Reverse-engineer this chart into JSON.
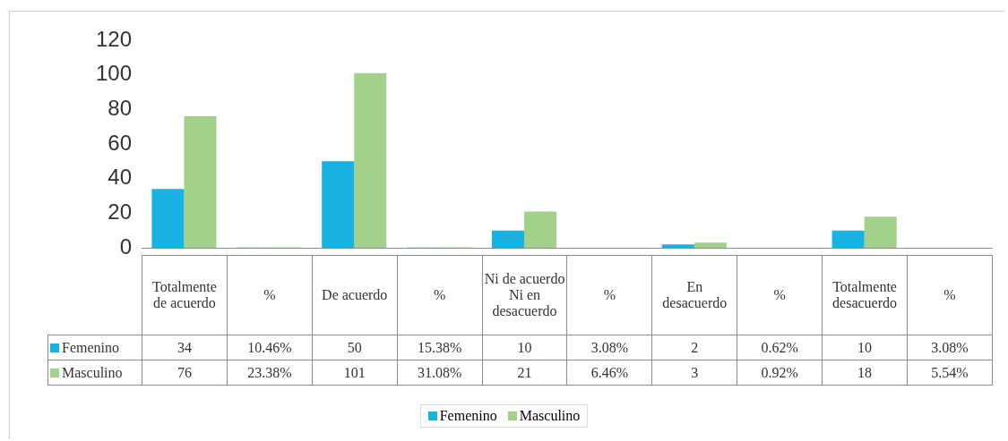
{
  "chart_data": {
    "type": "bar",
    "categories": [
      "Totalmente de acuerdo",
      "%",
      "De acuerdo",
      "%",
      "Ni de acuerdo Ni en desacuerdo",
      "%",
      "En desacuerdo",
      "%",
      "Totalmente desacuerdo",
      "%"
    ],
    "series": [
      {
        "name": "Femenino",
        "color": "#1ab2e2",
        "values": [
          34,
          0.1046,
          50,
          0.1538,
          10,
          0.0308,
          2,
          0.0062,
          10,
          0.0308
        ],
        "value_labels": [
          "34",
          "10.46%",
          "50",
          "15.38%",
          "10",
          "3.08%",
          "2",
          "0.62%",
          "10",
          "3.08%"
        ]
      },
      {
        "name": "Masculino",
        "color": "#a3d18c",
        "values": [
          76,
          0.2338,
          101,
          0.3108,
          21,
          0.0646,
          3,
          0.0092,
          18,
          0.0554
        ],
        "value_labels": [
          "76",
          "23.38%",
          "101",
          "31.08%",
          "21",
          "6.46%",
          "3",
          "0.92%",
          "18",
          "5.54%"
        ]
      }
    ],
    "ylim": [
      0,
      120
    ],
    "yticks": [
      0,
      20,
      40,
      60,
      80,
      100,
      120
    ],
    "legend": "bottom"
  }
}
